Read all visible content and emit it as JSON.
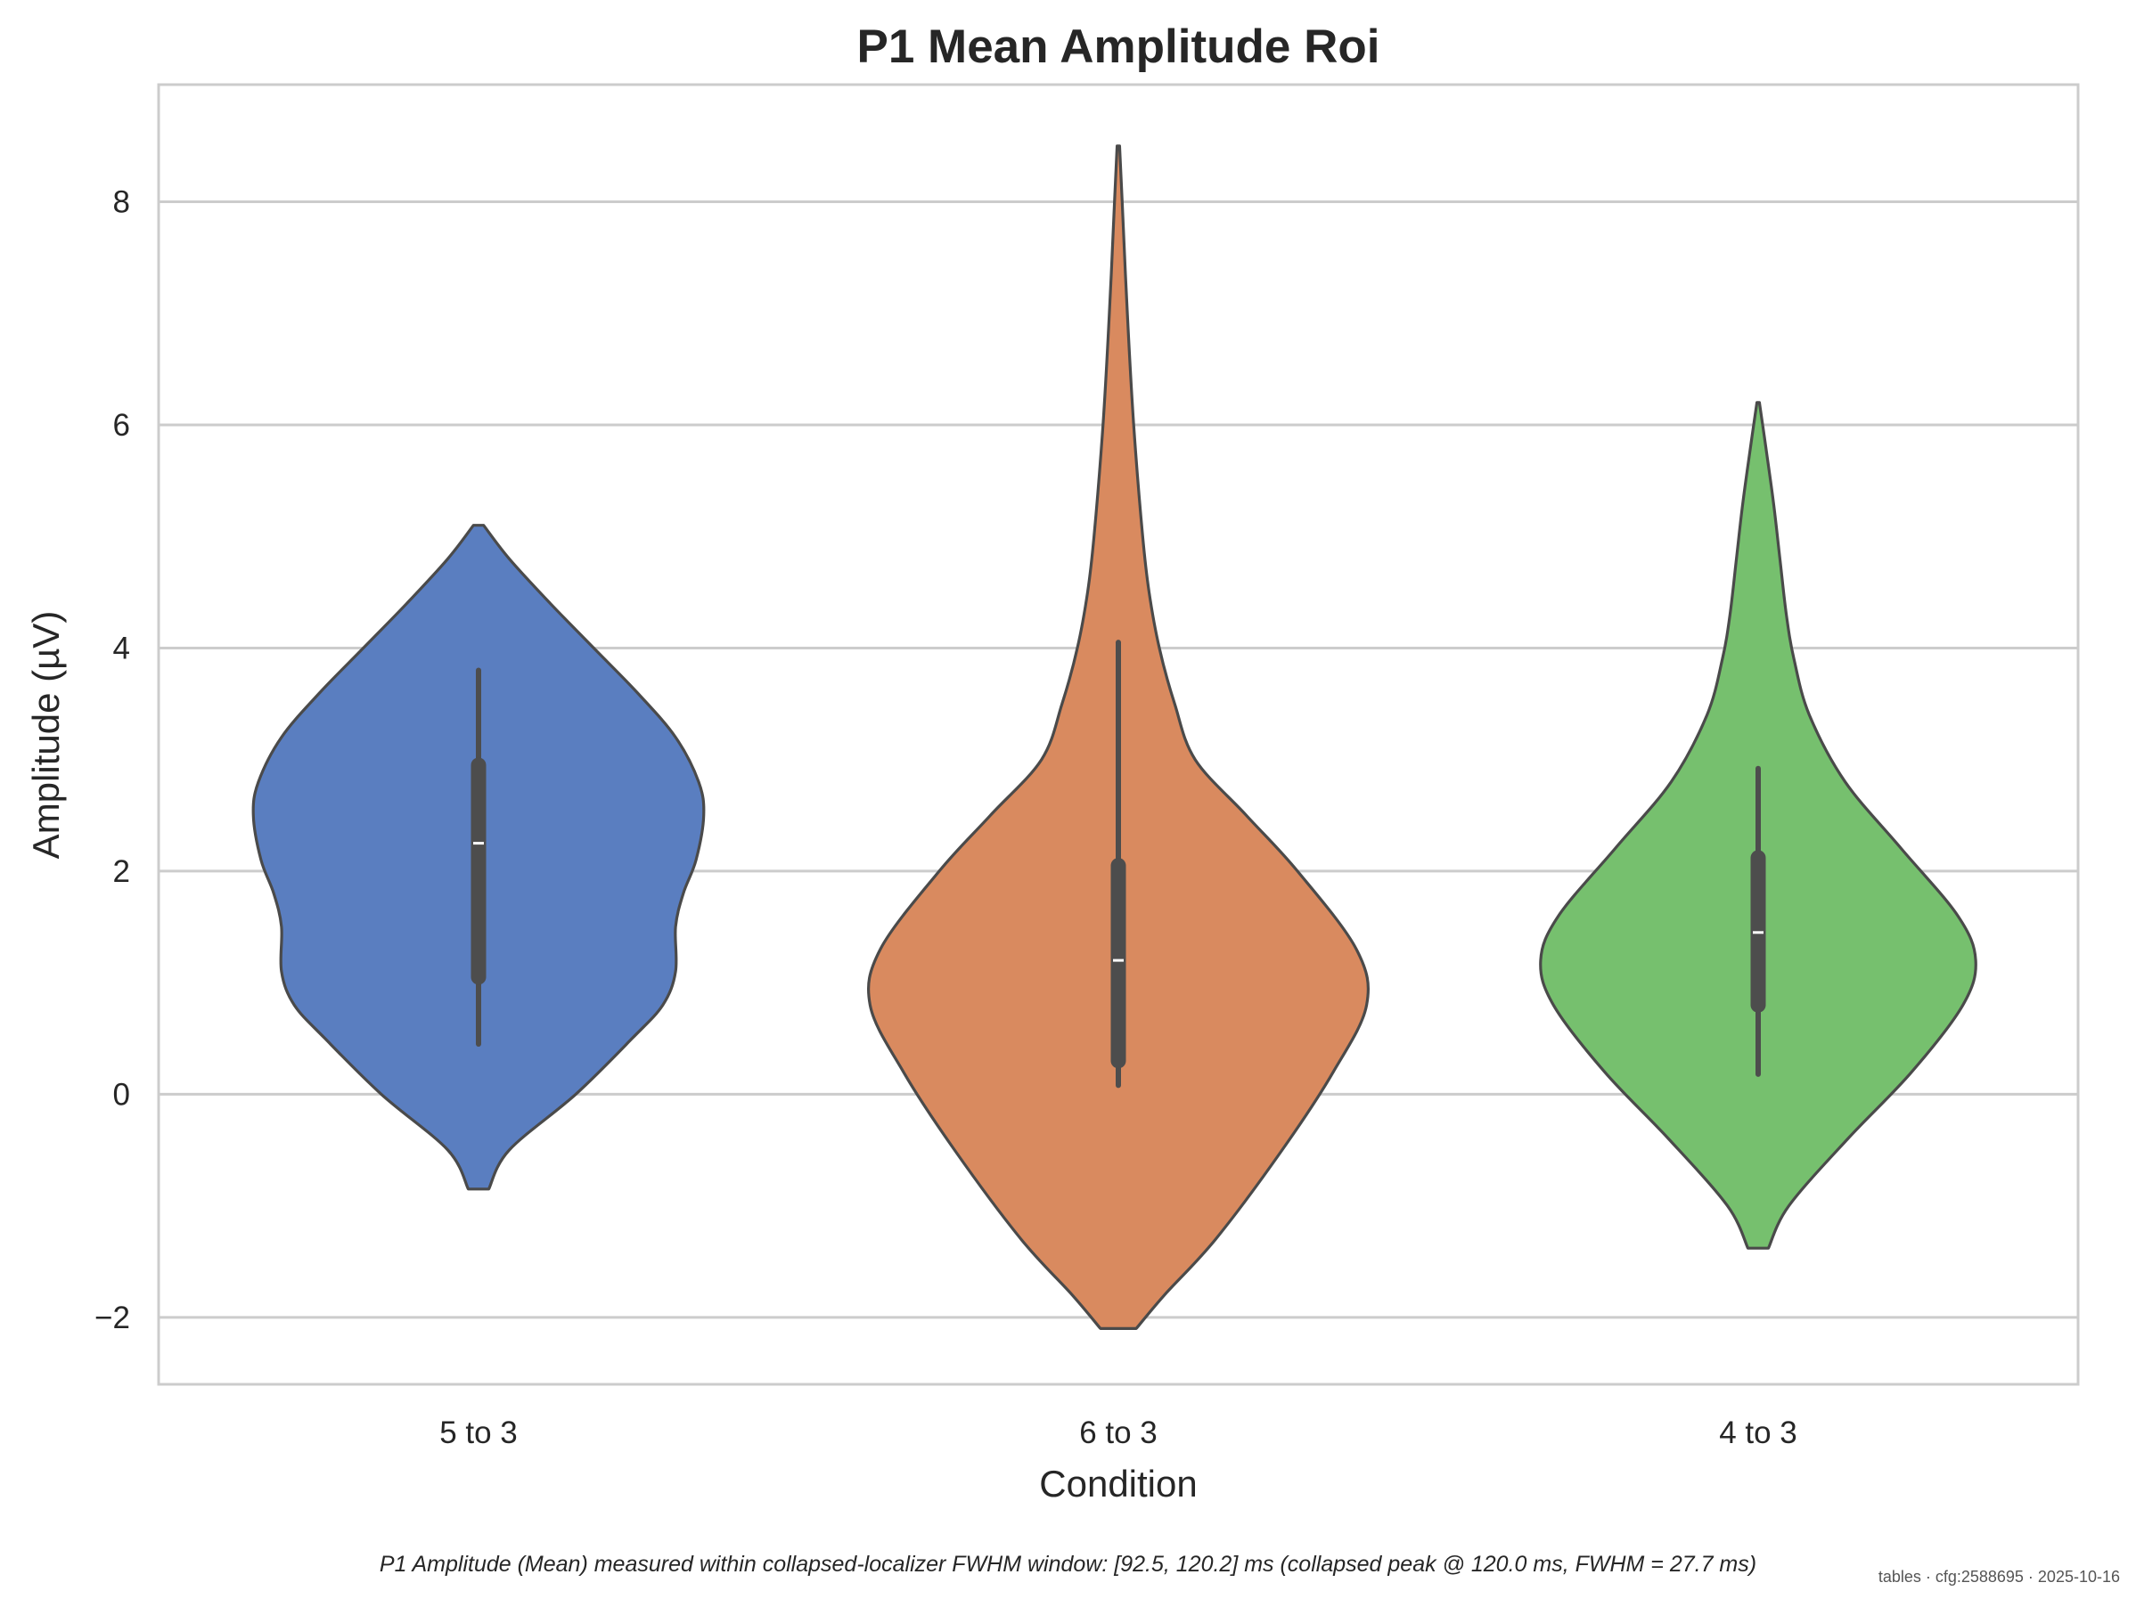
{
  "chart_data": {
    "type": "violin",
    "title": "P1 Mean Amplitude Roi",
    "xlabel": "Condition",
    "ylabel": "Amplitude (µV)",
    "ylim": [
      -2.6,
      9.05
    ],
    "yticks": [
      -2,
      0,
      2,
      4,
      6,
      8
    ],
    "ytick_labels": [
      "−2",
      "0",
      "2",
      "4",
      "6",
      "8"
    ],
    "grid": "horizontal",
    "categories": [
      "5 to 3",
      "6 to 3",
      "4 to 3"
    ],
    "colors": [
      "#5a7ec0",
      "#d98a5f",
      "#76c06e"
    ],
    "violins": [
      {
        "label": "5 to 3",
        "min": -0.85,
        "max": 5.1,
        "whisker_low": 0.45,
        "q1": 1.05,
        "median": 2.25,
        "q3": 2.95,
        "whisker_high": 3.8,
        "profile": [
          [
            -0.85,
            0.04
          ],
          [
            -0.5,
            0.12
          ],
          [
            0.0,
            0.38
          ],
          [
            0.5,
            0.6
          ],
          [
            0.8,
            0.72
          ],
          [
            1.1,
            0.77
          ],
          [
            1.5,
            0.77
          ],
          [
            1.8,
            0.8
          ],
          [
            2.1,
            0.85
          ],
          [
            2.5,
            0.88
          ],
          [
            2.8,
            0.86
          ],
          [
            3.2,
            0.77
          ],
          [
            3.6,
            0.62
          ],
          [
            4.0,
            0.45
          ],
          [
            4.4,
            0.28
          ],
          [
            4.8,
            0.12
          ],
          [
            5.1,
            0.02
          ]
        ]
      },
      {
        "label": "6 to 3",
        "min": -2.1,
        "max": 8.5,
        "whisker_low": 0.08,
        "q1": 0.3,
        "median": 1.2,
        "q3": 2.05,
        "whisker_high": 4.05,
        "profile": [
          [
            -2.1,
            0.07
          ],
          [
            -1.8,
            0.18
          ],
          [
            -1.3,
            0.38
          ],
          [
            -0.5,
            0.64
          ],
          [
            0.2,
            0.84
          ],
          [
            0.8,
            0.97
          ],
          [
            1.3,
            0.93
          ],
          [
            2.0,
            0.7
          ],
          [
            2.5,
            0.5
          ],
          [
            3.0,
            0.3
          ],
          [
            3.5,
            0.22
          ],
          [
            4.0,
            0.16
          ],
          [
            4.5,
            0.12
          ],
          [
            5.0,
            0.095
          ],
          [
            6.0,
            0.06
          ],
          [
            7.0,
            0.035
          ],
          [
            8.0,
            0.015
          ],
          [
            8.5,
            0.005
          ]
        ]
      },
      {
        "label": "4 to 3",
        "min": -1.38,
        "max": 6.2,
        "whisker_low": 0.18,
        "q1": 0.8,
        "median": 1.45,
        "q3": 2.12,
        "whisker_high": 2.92,
        "profile": [
          [
            -1.38,
            0.04
          ],
          [
            -1.0,
            0.12
          ],
          [
            -0.4,
            0.35
          ],
          [
            0.2,
            0.6
          ],
          [
            0.8,
            0.8
          ],
          [
            1.2,
            0.85
          ],
          [
            1.6,
            0.78
          ],
          [
            2.2,
            0.56
          ],
          [
            2.8,
            0.34
          ],
          [
            3.4,
            0.2
          ],
          [
            3.9,
            0.14
          ],
          [
            4.3,
            0.11
          ],
          [
            4.8,
            0.085
          ],
          [
            5.3,
            0.06
          ],
          [
            5.8,
            0.03
          ],
          [
            6.2,
            0.005
          ]
        ]
      }
    ]
  },
  "footer": {
    "caption": "P1 Amplitude (Mean) measured within collapsed-localizer FWHM window: [92.5, 120.2] ms (collapsed peak @ 120.0 ms, FWHM = 27.7 ms)",
    "stamp": "tables · cfg:2588695 · 2025-10-16"
  }
}
